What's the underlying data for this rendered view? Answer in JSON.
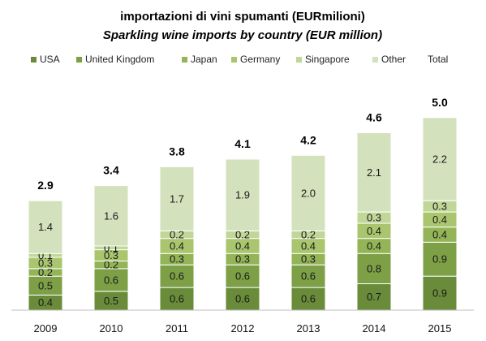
{
  "chart_data": {
    "type": "bar",
    "stacked": true,
    "title": "importazioni di vini spumanti (EURmilioni)",
    "subtitle": "Sparkling wine imports by country (EUR million)",
    "categories": [
      "2009",
      "2010",
      "2011",
      "2012",
      "2013",
      "2014",
      "2015"
    ],
    "series": [
      {
        "name": "USA",
        "color": "#6a8c3a",
        "values": [
          0.4,
          0.5,
          0.6,
          0.6,
          0.6,
          0.7,
          0.9
        ]
      },
      {
        "name": "United Kingdom",
        "color": "#7d9f46",
        "values": [
          0.5,
          0.6,
          0.6,
          0.6,
          0.6,
          0.8,
          0.9
        ]
      },
      {
        "name": "Japan",
        "color": "#93b457",
        "values": [
          0.2,
          0.2,
          0.3,
          0.3,
          0.3,
          0.4,
          0.4
        ]
      },
      {
        "name": "Germany",
        "color": "#a9c66f",
        "values": [
          0.3,
          0.3,
          0.4,
          0.4,
          0.4,
          0.4,
          0.4
        ]
      },
      {
        "name": "Singapore",
        "color": "#c0d798",
        "values": [
          0.1,
          0.1,
          0.2,
          0.2,
          0.2,
          0.3,
          0.3
        ]
      },
      {
        "name": "Other",
        "color": "#d3e2bd",
        "values": [
          1.4,
          1.6,
          1.7,
          1.9,
          2.0,
          2.1,
          2.2
        ]
      }
    ],
    "totals": {
      "name": "Total",
      "values": [
        2.9,
        3.4,
        3.8,
        4.1,
        4.2,
        4.6,
        5.0
      ]
    },
    "ylim": [
      0,
      5.5
    ],
    "grid": false,
    "legend_position": "top"
  }
}
